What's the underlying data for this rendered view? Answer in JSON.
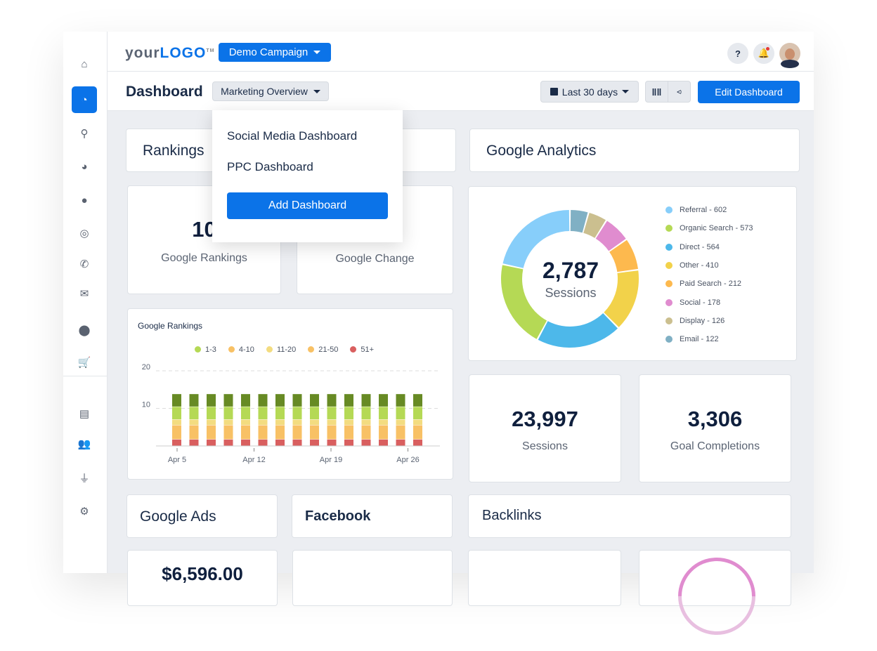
{
  "header": {
    "logo_text": "yourLOGO",
    "campaign": "Demo Campaign",
    "help": "?"
  },
  "subheader": {
    "title": "Dashboard",
    "dashboard_select": "Marketing Overview",
    "date_range": "Last 30 days",
    "edit_button": "Edit Dashboard"
  },
  "dropdown": {
    "items": [
      "Social Media Dashboard",
      "PPC Dashboard"
    ],
    "add_button": "Add Dashboard"
  },
  "sidebar": {
    "items": [
      "home-icon",
      "dashboard-icon",
      "search-icon",
      "pie-chart-icon",
      "chat-icon",
      "target-icon",
      "phone-icon",
      "mail-icon",
      "location-pin-icon",
      "cart-icon",
      "document-icon",
      "users-icon",
      "plug-icon",
      "gear-icon"
    ],
    "active": "dashboard-icon"
  },
  "sections": {
    "rankings": "Rankings",
    "google_analytics": "Google Analytics",
    "google_ads": "Google Ads",
    "facebook": "Facebook",
    "backlinks": "Backlinks"
  },
  "kpis": {
    "rankings_value": "10",
    "rankings_label": "Google Rankings",
    "change_label": "Google Change",
    "sessions_value": "23,997",
    "sessions_label": "Sessions",
    "goals_value": "3,306",
    "goals_label": "Goal Completions",
    "ads_value": "$6,596.00"
  },
  "colors": {
    "accent": "#0b73e8"
  },
  "chart_data": [
    {
      "type": "bar",
      "stacked": true,
      "title": "Google Rankings",
      "ylim": [
        0,
        20
      ],
      "yticks": [
        "10",
        "20"
      ],
      "xticks": [
        "Apr 5",
        "Apr 12",
        "Apr 19",
        "Apr 26"
      ],
      "grid": true,
      "legend_position": "top",
      "legend": [
        {
          "name": "1-3",
          "color": "#b5d955"
        },
        {
          "name": "4-10",
          "color": "#f8c165"
        },
        {
          "name": "11-20",
          "color": "#f3dc80"
        },
        {
          "name": "21-50",
          "color": "#f8c165"
        },
        {
          "name": "51+",
          "color": "#d95f5f"
        }
      ],
      "series": [
        {
          "color": "#d95f5f",
          "values": [
            1.7,
            1.7,
            1.7,
            1.7,
            1.7,
            1.7,
            1.7,
            1.7,
            1.7,
            1.7,
            1.7,
            1.7,
            1.7,
            1.7,
            1.7
          ]
        },
        {
          "color": "#f8c165",
          "values": [
            3.8,
            3.8,
            3.8,
            3.8,
            3.8,
            3.8,
            3.8,
            3.8,
            3.8,
            3.8,
            3.8,
            3.8,
            3.8,
            3.8,
            3.8
          ]
        },
        {
          "color": "#f3dc80",
          "values": [
            1.5,
            1.5,
            1.5,
            1.5,
            1.5,
            1.5,
            1.5,
            1.5,
            1.5,
            1.5,
            1.5,
            1.5,
            1.5,
            1.5,
            1.5
          ]
        },
        {
          "color": "#b5d955",
          "values": [
            3.4,
            3.4,
            3.4,
            3.4,
            3.4,
            3.4,
            3.4,
            3.4,
            3.4,
            3.4,
            3.4,
            3.4,
            3.4,
            3.4,
            3.4
          ]
        },
        {
          "color": "#678a24",
          "values": [
            3.4,
            3.4,
            3.4,
            3.4,
            3.4,
            3.4,
            3.4,
            3.4,
            3.4,
            3.4,
            3.4,
            3.4,
            3.4,
            3.4,
            3.4
          ]
        }
      ]
    },
    {
      "type": "pie",
      "donut": true,
      "center_value": "2,787",
      "center_label": "Sessions",
      "legend_position": "right",
      "slices": [
        {
          "name": "Referral",
          "value": 602,
          "label": "Referral - 602",
          "color": "#87cefa"
        },
        {
          "name": "Organic Search",
          "value": 573,
          "label": "Organic Search - 573",
          "color": "#b5d955"
        },
        {
          "name": "Direct",
          "value": 564,
          "label": "Direct - 564",
          "color": "#4db8ea"
        },
        {
          "name": "Other",
          "value": 410,
          "label": "Other - 410",
          "color": "#f2d24a"
        },
        {
          "name": "Paid Search",
          "value": 212,
          "label": "Paid Search - 212",
          "color": "#fdb94e"
        },
        {
          "name": "Social",
          "value": 178,
          "label": "Social - 178",
          "color": "#e08ccf"
        },
        {
          "name": "Display",
          "value": 126,
          "label": "Display - 126",
          "color": "#cbbf8f"
        },
        {
          "name": "Email",
          "value": 122,
          "label": "Email - 122",
          "color": "#80b0c4"
        }
      ]
    }
  ]
}
